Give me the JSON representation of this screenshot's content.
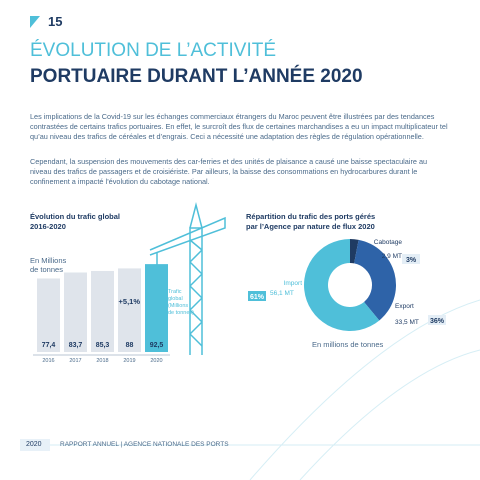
{
  "page_number": "15",
  "title": {
    "line1": "ÉVOLUTION DE L’ACTIVITÉ",
    "line2": "PORTUAIRE DURANT L’ANNÉE 2020"
  },
  "paragraphs": [
    "Les implications de la Covid-19 sur les échanges commerciaux étrangers du Maroc peuvent être illustrées par des tendances contrastées de certains trafics portuaires. En effet, le surcroît des flux de certaines marchandises a eu un impact multiplicateur tel qu’au niveau des trafics de céréales et d’engrais. Ceci a nécessité une adaptation des règles de régulation opérationnelle.",
    "Cependant, la suspension des mouvements des car-ferries et des unités de plaisance a causé une baisse spectaculaire au niveau des trafics de passagers et de croisiériste. Par ailleurs, la baisse des consommations en hydrocarbures durant le confinement a impacté l’évolution du cabotage national."
  ],
  "bar_chart": {
    "type": "bar",
    "title": "Évolution du trafic global\n2016-2020",
    "unit": "En Millions\nde tonnes",
    "categories": [
      "2016",
      "2017",
      "2018",
      "2019",
      "2020"
    ],
    "values": [
      77.4,
      83.7,
      85.3,
      88,
      92.5
    ],
    "value_labels": [
      "77,4",
      "83,7",
      "85,3",
      "88",
      "92,5"
    ],
    "colors": [
      "#dfe4eb",
      "#dfe4eb",
      "#dfe4eb",
      "#dfe4eb",
      "#4fbfd9"
    ],
    "annotation": "+5,1%",
    "legend": "Trafic\nglobal\n(Millions\nde tonnes)"
  },
  "pie_chart": {
    "type": "pie",
    "title": "Répartition du trafic des ports gérés\npar l’Agence par nature de flux 2020",
    "categories": [
      "Cabotage",
      "Export",
      "Import"
    ],
    "values": [
      3,
      36,
      61
    ],
    "value_labels": [
      "3%",
      "36%",
      "61%"
    ],
    "amount_labels": [
      "2,9 MT",
      "33,5 MT",
      "56,1 MT"
    ],
    "colors": [
      "#1f3b63",
      "#2e63a8",
      "#4fbfd9"
    ],
    "caption": "En millions de tonnes"
  },
  "footer": {
    "year": "2020",
    "text": "RAPPORT ANNUEL | AGENCE NATIONALE DES PORTS"
  }
}
